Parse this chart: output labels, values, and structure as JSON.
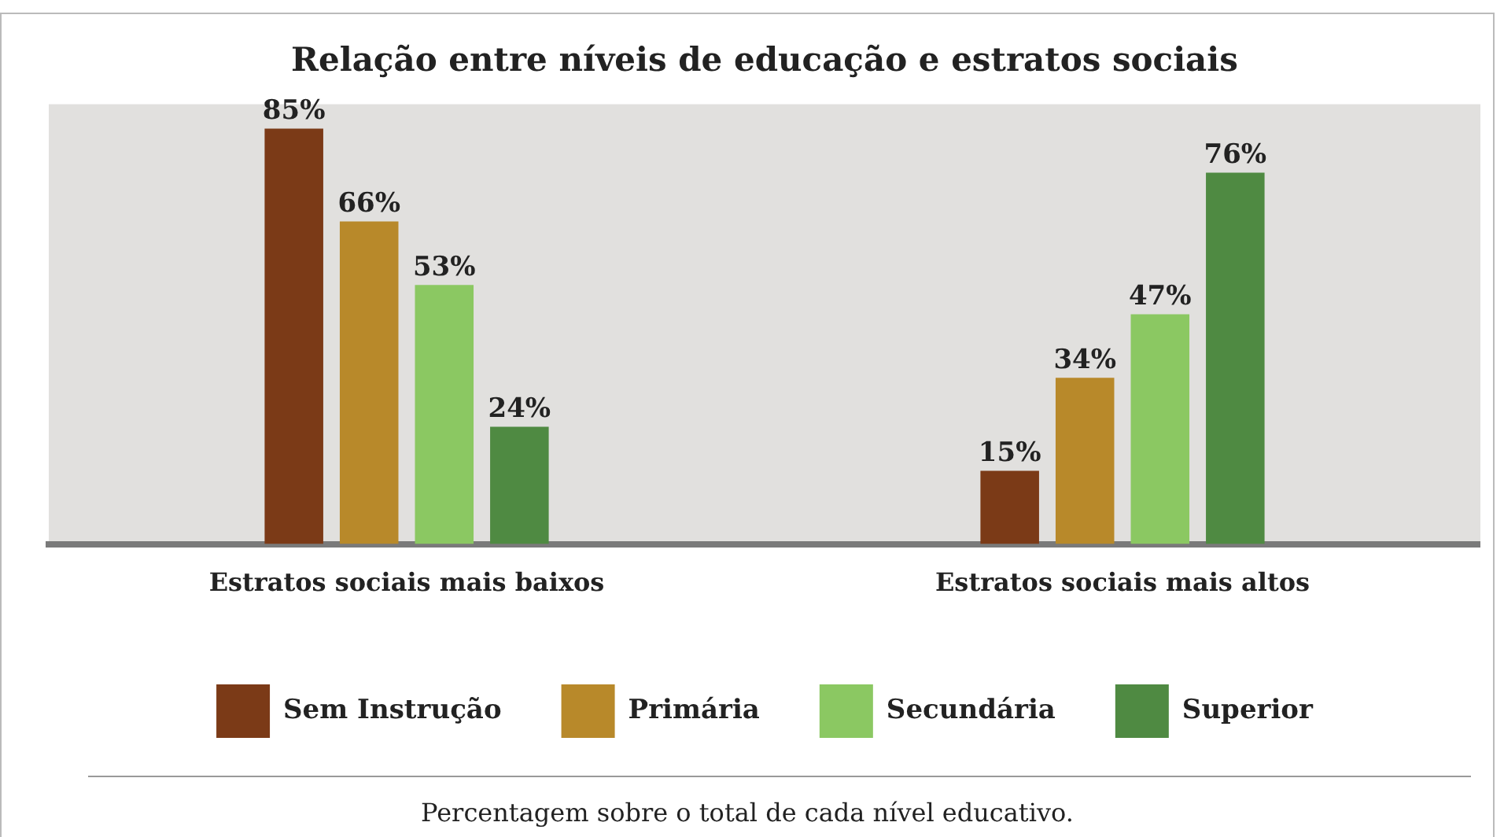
{
  "chart_data": {
    "type": "bar",
    "title": "Relação entre níveis de educação e estratos sociais",
    "categories": [
      "Estratos sociais mais baixos",
      "Estratos sociais mais altos"
    ],
    "series": [
      {
        "name": "Sem Instrução",
        "color": "#7b3a17",
        "values": [
          85,
          15
        ],
        "value_labels": [
          "85%",
          "15%"
        ]
      },
      {
        "name": "Primária",
        "color": "#b8892a",
        "values": [
          66,
          34
        ],
        "value_labels": [
          "66%",
          "34%"
        ]
      },
      {
        "name": "Secundária",
        "color": "#8bc862",
        "values": [
          53,
          47
        ],
        "value_labels": [
          "53%",
          "47%"
        ]
      },
      {
        "name": "Superior",
        "color": "#4f8a42",
        "values": [
          24,
          76
        ],
        "value_labels": [
          "24%",
          "76%"
        ]
      }
    ],
    "grid": false,
    "legend": "bottom",
    "tick_labels": "x",
    "annotations": [
      "Percentagem sobre o total de cada nível educativo."
    ]
  }
}
